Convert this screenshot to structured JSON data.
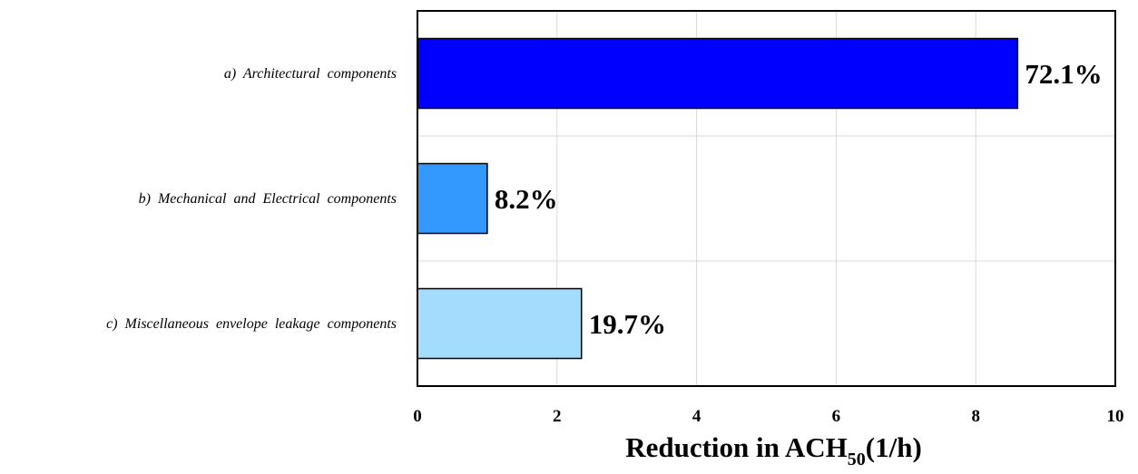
{
  "chart_data": {
    "type": "bar",
    "orientation": "horizontal",
    "categories": [
      "a)  Architectural  components",
      "b)  Mechanical  and  Electrical  components",
      "c)  Miscellaneous  envelope  leakage  components"
    ],
    "values": [
      8.6,
      1.0,
      2.35
    ],
    "data_labels": [
      "72.1%",
      "8.2%",
      "19.7%"
    ],
    "colors": [
      "#0000ff",
      "#3399ff",
      "#a3dcfd"
    ],
    "xlabel": {
      "prefix": "Reduction in ACH",
      "subscript": "50",
      "suffix": "(1/h)"
    },
    "xlim": [
      0,
      10
    ],
    "xticks": [
      "0",
      "2",
      "4",
      "6",
      "8",
      "10"
    ],
    "grid": true
  }
}
